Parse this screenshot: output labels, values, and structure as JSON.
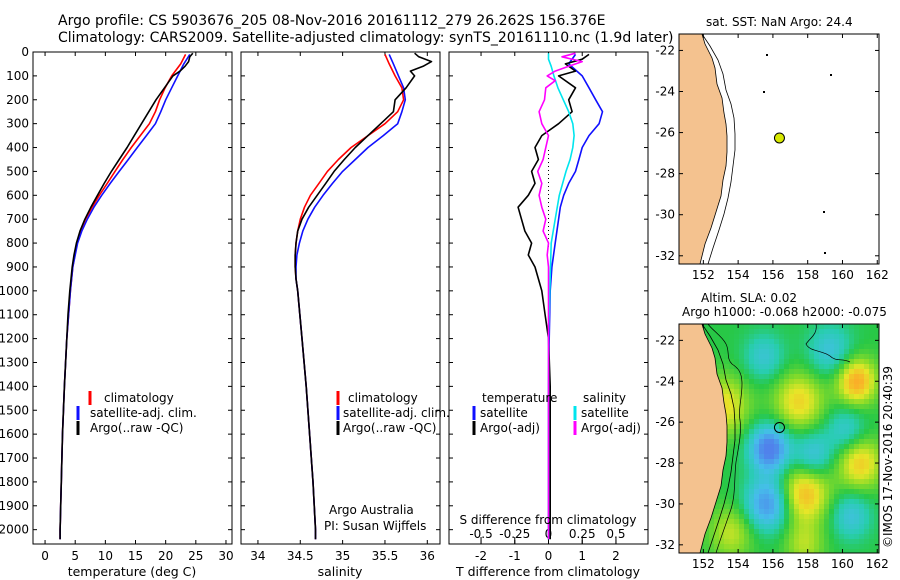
{
  "header": {
    "line1": "Argo profile: CS 5903676_205 08-Nov-2016 20161112_279 26.262S 156.376E",
    "line2": "Climatology: CARS2009. Satellite-adjusted climatology: synTS_20161110.nc (1.9d later)"
  },
  "colors": {
    "climatology": "#ff0000",
    "satellite": "#1010ff",
    "argo": "#000000",
    "sal_satellite": "#00e5ee",
    "sal_argo": "#ff00ff",
    "land": "#f4c28f",
    "sea": "#ffffff"
  },
  "chart_data": [
    {
      "type": "line",
      "title": "",
      "xlabel": "temperature (deg C)",
      "ylabel": "",
      "xlim": [
        -2,
        31
      ],
      "ylim": [
        2060,
        0
      ],
      "x_ticks": [
        "0",
        "5",
        "10",
        "15",
        "20",
        "25",
        "30"
      ],
      "y_ticks": [
        "0",
        "100",
        "200",
        "300",
        "400",
        "500",
        "600",
        "700",
        "800",
        "900",
        "1000",
        "1100",
        "1200",
        "1300",
        "1400",
        "1500",
        "1600",
        "1700",
        "1800",
        "1900",
        "2000"
      ],
      "legend": [
        "climatology",
        "satellite-adj. clim.",
        "Argo(..raw -QC)"
      ],
      "series": [
        {
          "name": "climatology",
          "color": "#ff0000",
          "depth": [
            10,
            50,
            100,
            150,
            200,
            250,
            300,
            350,
            400,
            450,
            500,
            550,
            600,
            650,
            700,
            750,
            800,
            900,
            1000,
            1200,
            1400,
            1600,
            1800,
            2000,
            2040
          ],
          "values": [
            23.3,
            22.5,
            21.0,
            19.9,
            19.0,
            18.3,
            17.3,
            15.8,
            14.3,
            12.9,
            11.6,
            10.3,
            9.0,
            7.8,
            6.7,
            5.9,
            5.3,
            4.6,
            4.2,
            3.6,
            3.2,
            2.9,
            2.7,
            2.5,
            2.5
          ]
        },
        {
          "name": "satellite",
          "color": "#1010ff",
          "depth": [
            10,
            50,
            100,
            150,
            200,
            250,
            300,
            350,
            400,
            450,
            500,
            550,
            600,
            650,
            700,
            750,
            800,
            900,
            1000,
            1200,
            1400,
            1600,
            1800,
            2000,
            2040
          ],
          "values": [
            24.0,
            23.0,
            22.0,
            21.0,
            20.0,
            19.2,
            18.3,
            16.8,
            15.3,
            13.8,
            12.3,
            10.8,
            9.4,
            8.1,
            7.0,
            6.1,
            5.4,
            4.6,
            4.2,
            3.6,
            3.2,
            2.9,
            2.7,
            2.5,
            2.5
          ]
        },
        {
          "name": "Argo",
          "color": "#000000",
          "depth": [
            5,
            20,
            40,
            60,
            80,
            100,
            150,
            200,
            250,
            300,
            350,
            400,
            450,
            500,
            550,
            600,
            650,
            700,
            750,
            800,
            850,
            900,
            950,
            1000,
            1100,
            1200,
            1400,
            1600,
            1800,
            2000,
            2040
          ],
          "values": [
            24.5,
            24.0,
            23.8,
            23.2,
            22.4,
            21.2,
            19.8,
            18.4,
            17.2,
            16.0,
            14.8,
            13.6,
            12.3,
            11.0,
            9.8,
            8.7,
            7.6,
            6.6,
            5.8,
            5.2,
            4.8,
            4.5,
            4.3,
            4.1,
            3.8,
            3.6,
            3.2,
            2.9,
            2.7,
            2.5,
            2.5
          ]
        }
      ]
    },
    {
      "type": "line",
      "xlabel": "salinity",
      "xlim": [
        33.8,
        36.15
      ],
      "ylim": [
        2060,
        0
      ],
      "x_ticks": [
        "34",
        "34.5",
        "35",
        "35.5",
        "36"
      ],
      "legend": [
        "climatology",
        "satellite-adj. clim.",
        "Argo(..raw -QC)"
      ],
      "annotation": [
        "Argo Australia",
        "PI: Susan Wijffels"
      ],
      "series": [
        {
          "name": "climatology",
          "color": "#ff0000",
          "depth": [
            10,
            50,
            100,
            150,
            200,
            250,
            300,
            350,
            400,
            450,
            500,
            550,
            600,
            650,
            700,
            750,
            800,
            850,
            900,
            950,
            1000,
            1200,
            1400,
            1600,
            1800,
            2000,
            2040
          ],
          "values": [
            35.5,
            35.55,
            35.62,
            35.7,
            35.72,
            35.65,
            35.5,
            35.3,
            35.1,
            34.95,
            34.82,
            34.72,
            34.62,
            34.55,
            34.5,
            34.47,
            34.45,
            34.44,
            34.44,
            34.45,
            34.47,
            34.52,
            34.57,
            34.61,
            34.65,
            34.68,
            34.68
          ]
        },
        {
          "name": "satellite",
          "color": "#1010ff",
          "depth": [
            10,
            50,
            100,
            150,
            200,
            250,
            300,
            350,
            400,
            450,
            500,
            550,
            600,
            650,
            700,
            750,
            800,
            850,
            900,
            950,
            1000,
            1200,
            1400,
            1600,
            1800,
            2000,
            2040
          ],
          "values": [
            35.55,
            35.6,
            35.66,
            35.72,
            35.74,
            35.7,
            35.65,
            35.48,
            35.3,
            35.15,
            35.0,
            34.88,
            34.77,
            34.67,
            34.59,
            34.53,
            34.49,
            34.46,
            34.45,
            34.45,
            34.47,
            34.52,
            34.57,
            34.61,
            34.65,
            34.68,
            34.68
          ]
        },
        {
          "name": "Argo",
          "color": "#000000",
          "depth": [
            5,
            20,
            40,
            60,
            80,
            100,
            150,
            200,
            250,
            300,
            350,
            400,
            450,
            500,
            550,
            600,
            650,
            700,
            750,
            800,
            850,
            900,
            950,
            1000,
            1200,
            1400,
            1600,
            1800,
            2000,
            2040
          ],
          "values": [
            35.85,
            35.9,
            36.05,
            35.95,
            35.8,
            35.85,
            35.75,
            35.62,
            35.6,
            35.45,
            35.3,
            35.15,
            35.02,
            34.9,
            34.8,
            34.7,
            34.6,
            34.52,
            34.47,
            34.45,
            34.44,
            34.44,
            34.45,
            34.47,
            34.52,
            34.57,
            34.61,
            34.65,
            34.68,
            34.68
          ]
        }
      ]
    },
    {
      "type": "line",
      "xlabel": "T difference from climatology",
      "top_axis_label": "S difference from climatology",
      "xlim": [
        -2.95,
        2.95
      ],
      "ylim": [
        2060,
        0
      ],
      "x_ticks": [
        "-2",
        "-1",
        "0",
        "1",
        "2"
      ],
      "top_ticks": [
        "-0.5",
        "-0.25",
        "0",
        "0.25",
        "0.5"
      ],
      "legend_titles": [
        "temperature",
        "salinity"
      ],
      "legend": [
        "satellite",
        "Argo(-adj)",
        "satellite",
        "Argo(-adj)"
      ],
      "series": [
        {
          "name": "T satellite",
          "color": "#1010ff",
          "depth": [
            10,
            50,
            100,
            150,
            200,
            250,
            300,
            350,
            400,
            450,
            500,
            550,
            600,
            650,
            700,
            750,
            800,
            900,
            1000,
            1200,
            1400,
            1600,
            1800,
            2000,
            2040
          ],
          "values": [
            0.8,
            0.6,
            1.0,
            1.2,
            1.4,
            1.6,
            1.5,
            1.2,
            1.0,
            0.9,
            0.8,
            0.6,
            0.45,
            0.35,
            0.3,
            0.25,
            0.2,
            0.1,
            0.05,
            0.02,
            0.0,
            0.0,
            0.0,
            0.0,
            0.0
          ]
        },
        {
          "name": "T Argo",
          "color": "#000000",
          "depth": [
            10,
            30,
            50,
            80,
            100,
            150,
            200,
            250,
            300,
            350,
            400,
            450,
            500,
            550,
            600,
            650,
            700,
            750,
            800,
            850,
            900,
            950,
            1000,
            1100,
            1200,
            1400,
            1600,
            1800,
            2000,
            2040
          ],
          "values": [
            1.2,
            1.0,
            0.5,
            0.8,
            0.3,
            0.8,
            0.6,
            0.7,
            0.3,
            -0.2,
            -0.4,
            -0.3,
            -0.5,
            -0.4,
            -0.6,
            -0.9,
            -0.8,
            -0.7,
            -0.5,
            -0.6,
            -0.4,
            -0.3,
            -0.2,
            -0.1,
            0.0,
            0.05,
            0.05,
            0.05,
            0.05,
            0.05
          ]
        },
        {
          "name": "S satellite",
          "color": "#00e5ee",
          "depth": [
            5,
            30,
            60,
            100,
            150,
            200,
            250,
            300,
            350,
            400,
            450,
            500,
            600,
            700,
            800,
            1000,
            1200,
            1600,
            2040
          ],
          "values": [
            0.0,
            0.0,
            0.02,
            0.04,
            0.07,
            0.11,
            0.15,
            0.18,
            0.19,
            0.18,
            0.16,
            0.13,
            0.08,
            0.05,
            0.02,
            0.01,
            0.0,
            0.0,
            0.0
          ]
        },
        {
          "name": "S Argo",
          "color": "#ff00ff",
          "depth": [
            5,
            20,
            40,
            60,
            80,
            100,
            120,
            150,
            200,
            250,
            300,
            350,
            400,
            450,
            500,
            550,
            600,
            650,
            700,
            750,
            800,
            850,
            900,
            1000,
            1200,
            1600,
            2040
          ],
          "values": [
            0.2,
            0.1,
            0.25,
            0.15,
            0.05,
            -0.01,
            0.05,
            -0.02,
            -0.03,
            -0.07,
            -0.05,
            0.0,
            -0.02,
            -0.04,
            -0.08,
            -0.05,
            -0.07,
            -0.05,
            -0.02,
            -0.04,
            0.0,
            -0.01,
            0.0,
            0.0,
            0.0,
            0.0,
            0.0
          ]
        }
      ]
    },
    {
      "type": "scatter",
      "title": "sat. SST: NaN Argo: 24.4",
      "xlim": [
        150.6,
        162.1
      ],
      "ylim": [
        -32.4,
        -21.2
      ],
      "x_ticks": [
        "152",
        "154",
        "156",
        "158",
        "160",
        "162"
      ],
      "y_ticks": [
        "-22",
        "-24",
        "-26",
        "-28",
        "-30",
        "-32"
      ],
      "points": [
        {
          "lon": 156.376,
          "lat": -26.262,
          "label": "Argo",
          "color": "#d7e800"
        }
      ]
    },
    {
      "type": "heatmap",
      "title_lines": [
        "Altim. SLA: 0.02",
        "Argo h1000: -0.068 h2000: -0.075"
      ],
      "xlim": [
        150.6,
        162.1
      ],
      "ylim": [
        -32.4,
        -21.2
      ],
      "x_ticks": [
        "152",
        "154",
        "156",
        "158",
        "160",
        "162"
      ],
      "y_ticks": [
        "-22",
        "-24",
        "-26",
        "-28",
        "-30",
        "-32"
      ],
      "points": [
        {
          "lon": 156.376,
          "lat": -26.262,
          "label": "Argo"
        }
      ],
      "field": [
        {
          "lon": 153.2,
          "lat": -25.2,
          "amp": 0.6,
          "sigma": 1.0
        },
        {
          "lon": 155.8,
          "lat": -27.3,
          "amp": -1.1,
          "sigma": 0.8
        },
        {
          "lon": 155.7,
          "lat": -30.0,
          "amp": -0.9,
          "sigma": 0.9
        },
        {
          "lon": 157.8,
          "lat": -29.5,
          "amp": 0.8,
          "sigma": 1.0
        },
        {
          "lon": 157.5,
          "lat": -25.0,
          "amp": 0.65,
          "sigma": 1.0
        },
        {
          "lon": 158.3,
          "lat": -27.6,
          "amp": -0.55,
          "sigma": 0.8
        },
        {
          "lon": 160.8,
          "lat": -24.0,
          "amp": 0.9,
          "sigma": 0.8
        },
        {
          "lon": 160.2,
          "lat": -26.4,
          "amp": -0.45,
          "sigma": 0.8
        },
        {
          "lon": 161.0,
          "lat": -28.0,
          "amp": 0.7,
          "sigma": 0.9
        },
        {
          "lon": 159.3,
          "lat": -22.5,
          "amp": -0.5,
          "sigma": 0.9
        },
        {
          "lon": 155.5,
          "lat": -22.8,
          "amp": -0.45,
          "sigma": 0.8
        },
        {
          "lon": 160.5,
          "lat": -30.6,
          "amp": -0.5,
          "sigma": 0.8
        },
        {
          "lon": 153.6,
          "lat": -31.4,
          "amp": 0.45,
          "sigma": 0.9
        },
        {
          "lon": 157.8,
          "lat": -32.0,
          "amp": 0.4,
          "sigma": 0.8
        }
      ]
    }
  ],
  "credit": "©IMOS 17-Nov-2016 20:40:39"
}
